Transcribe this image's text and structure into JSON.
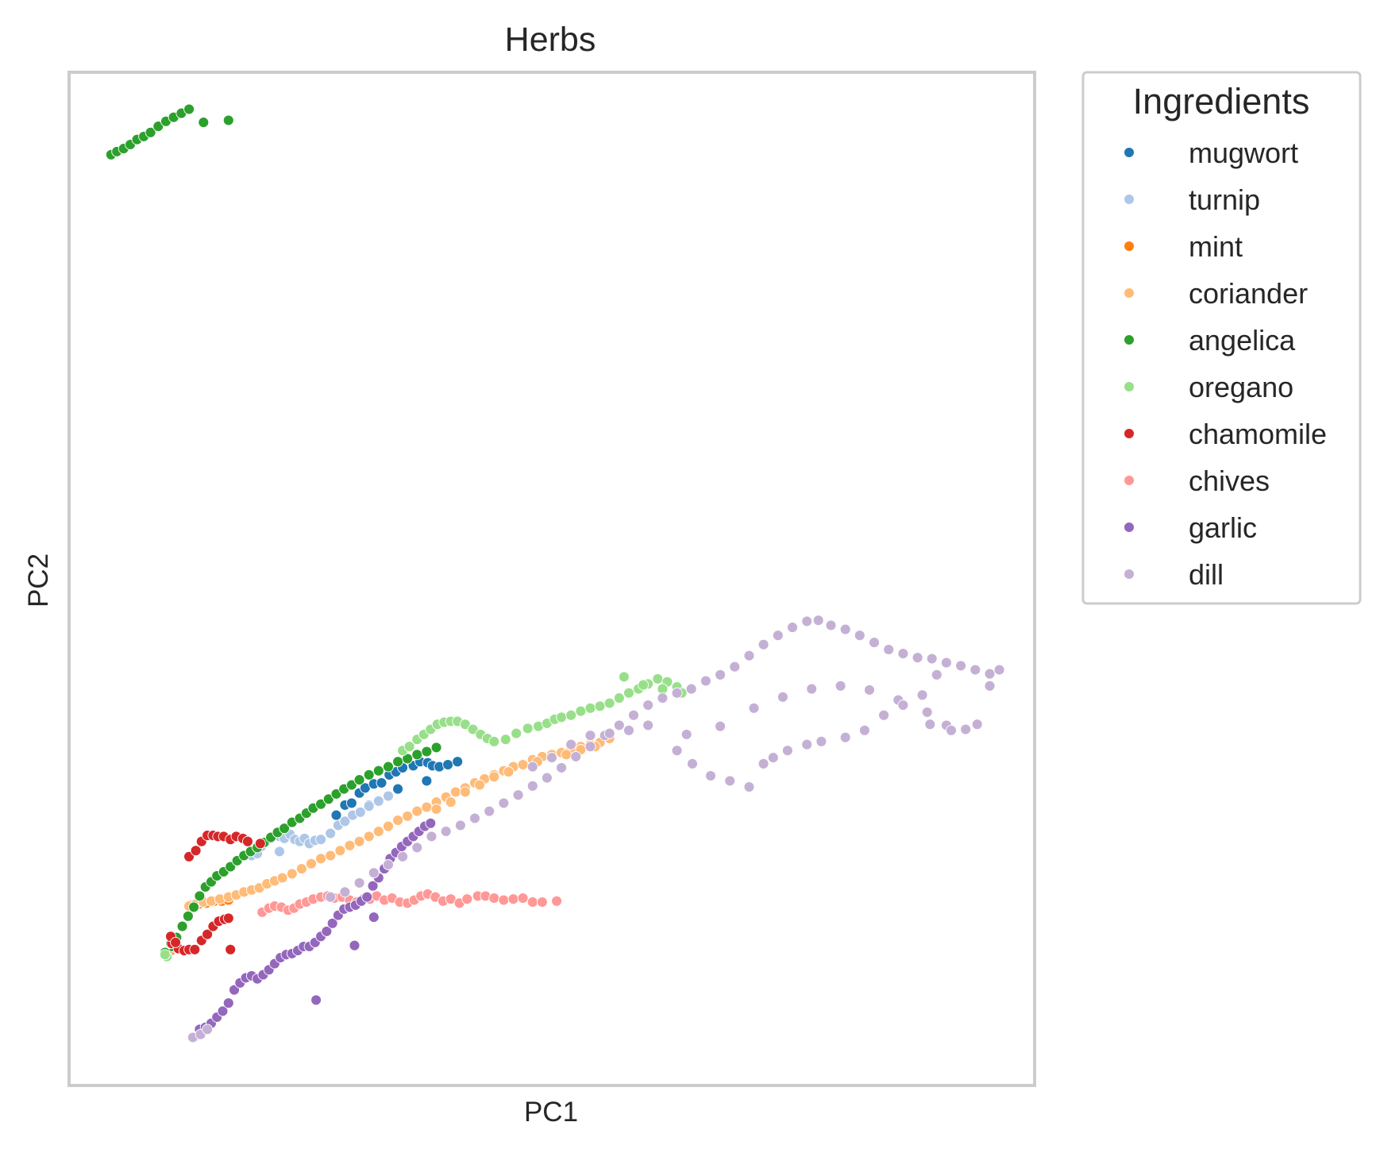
{
  "chart_data": {
    "type": "scatter",
    "title": "Herbs",
    "xlabel": "PC1",
    "ylabel": "PC2",
    "xlim": [
      0,
      100
    ],
    "ylim": [
      0,
      100
    ],
    "xticks": "hidden",
    "yticks": "hidden",
    "grid": false,
    "legend": {
      "title": "Ingredients",
      "placement": "outside-right-top"
    },
    "series": [
      {
        "name": "mugwort",
        "color": "#1f77b4",
        "x": [
          27.6,
          28.5,
          29.2,
          30.0,
          30.6,
          31.5,
          32.3,
          33.1,
          33.8,
          34.5,
          35.6,
          36.3,
          37.1,
          37.6,
          38.3,
          39.2,
          40.2,
          31.0,
          34.0,
          37.0
        ],
        "y": [
          26.6,
          27.6,
          27.8,
          28.8,
          29.3,
          29.7,
          29.8,
          30.6,
          30.9,
          31.3,
          31.5,
          31.9,
          31.8,
          31.5,
          31.4,
          31.6,
          31.9,
          27.6,
          29.2,
          30.0
        ]
      },
      {
        "name": "turnip",
        "color": "#aec7e8",
        "x": [
          18.8,
          19.3,
          19.8,
          20.3,
          20.8,
          21.2,
          21.7,
          22.2,
          22.8,
          23.3,
          23.8,
          24.3,
          24.8,
          25.4,
          26.0,
          27.0,
          27.8,
          28.5,
          29.3,
          30.1,
          31.0,
          32.0,
          33.0,
          19.4,
          21.7
        ],
        "y": [
          22.6,
          23.2,
          23.5,
          24.0,
          24.3,
          24.6,
          24.5,
          24.3,
          24.7,
          24.2,
          24.0,
          24.3,
          23.8,
          24.1,
          24.2,
          24.8,
          25.6,
          26.0,
          26.6,
          26.9,
          27.5,
          28.0,
          28.5,
          22.8,
          23.0
        ]
      },
      {
        "name": "mint",
        "color": "#ff7f0e",
        "x": [
          12.5,
          13.3,
          14.1,
          14.9,
          15.7,
          16.4,
          10.4,
          10.9
        ],
        "y": [
          17.7,
          17.8,
          17.9,
          18.1,
          18.1,
          18.2,
          13.2,
          13.5
        ]
      },
      {
        "name": "coriander",
        "color": "#ffbb78",
        "x": [
          12.3,
          13.0,
          13.8,
          14.6,
          15.5,
          16.4,
          17.2,
          18.0,
          18.8,
          19.6,
          20.4,
          21.2,
          22.0,
          23.0,
          24.0,
          25.0,
          26.0,
          27.0,
          28.0,
          29.0,
          30.0,
          31.0,
          32.0,
          33.0,
          34.0,
          35.0,
          36.0,
          37.0,
          38.0,
          39.0,
          40.0,
          41.0,
          42.0,
          43.0,
          44.0,
          45.0,
          46.0,
          47.0,
          48.0,
          49.0,
          50.0,
          51.0,
          52.0,
          53.0,
          54.0,
          55.0,
          56.0,
          38.0,
          39.5,
          41.0,
          42.5,
          44.0,
          45.5,
          47.0,
          48.5,
          50.0,
          51.5,
          53.0,
          54.5
        ],
        "y": [
          17.6,
          17.8,
          18.0,
          18.1,
          18.3,
          18.5,
          18.7,
          19.0,
          19.2,
          19.4,
          19.8,
          20.1,
          20.4,
          20.8,
          21.3,
          21.8,
          22.3,
          22.6,
          23.1,
          23.6,
          24.0,
          24.5,
          25.0,
          25.5,
          26.1,
          26.5,
          27.0,
          27.4,
          27.9,
          28.4,
          28.9,
          29.3,
          29.8,
          30.2,
          30.6,
          31.0,
          31.4,
          31.7,
          32.1,
          32.4,
          32.6,
          32.8,
          33.1,
          33.4,
          33.6,
          33.8,
          34.2,
          27.2,
          27.9,
          28.9,
          29.6,
          30.4,
          30.9,
          31.6,
          31.9,
          32.3,
          32.6,
          33.1,
          33.4
        ]
      },
      {
        "name": "angelica",
        "color": "#2ca02c",
        "x": [
          4.2,
          4.8,
          5.5,
          6.2,
          6.9,
          7.6,
          8.3,
          9.1,
          9.9,
          10.7,
          11.5,
          12.3,
          13.8,
          16.4,
          10.0,
          10.5,
          11.0,
          11.6,
          12.2,
          12.8,
          13.4,
          14.0,
          14.6,
          15.2,
          15.9,
          16.6,
          17.3,
          18.0,
          18.7,
          19.4,
          20.1,
          20.8,
          21.5,
          22.2,
          23.0,
          23.8,
          24.5,
          25.2,
          26.0,
          26.8,
          27.6,
          28.4,
          29.2,
          30.0,
          31.0,
          32.0,
          33.0,
          34.0,
          35.0,
          36.0,
          37.0,
          38.0,
          9.8,
          10.4
        ],
        "y": [
          92.0,
          92.3,
          92.6,
          93.0,
          93.5,
          93.8,
          94.2,
          94.8,
          95.3,
          95.7,
          96.1,
          96.5,
          95.2,
          95.4,
          12.9,
          13.6,
          14.5,
          15.6,
          16.6,
          17.5,
          18.6,
          19.5,
          20.0,
          20.6,
          21.0,
          21.5,
          22.1,
          22.6,
          23.0,
          23.4,
          23.9,
          24.4,
          24.9,
          25.3,
          25.9,
          26.3,
          26.8,
          27.3,
          27.7,
          28.2,
          28.7,
          29.2,
          29.6,
          30.1,
          30.6,
          31.0,
          31.4,
          31.9,
          32.2,
          32.6,
          32.9,
          33.3,
          13.0,
          13.9
        ]
      },
      {
        "name": "oregano",
        "color": "#98df8a",
        "x": [
          34.5,
          35.2,
          36.0,
          36.7,
          37.4,
          38.1,
          38.8,
          39.5,
          40.2,
          41.0,
          41.8,
          42.6,
          43.3,
          44.0,
          45.2,
          46.3,
          47.5,
          48.6,
          49.5,
          50.3,
          51.0,
          52.0,
          53.0,
          54.0,
          55.0,
          56.0,
          57.0,
          58.0,
          59.0,
          60.0,
          61.0,
          62.0,
          63.0,
          57.5,
          59.5,
          61.5,
          63.5,
          10.0,
          9.8
        ],
        "y": [
          33.0,
          33.4,
          34.1,
          34.6,
          35.1,
          35.6,
          35.8,
          35.9,
          35.9,
          35.6,
          35.1,
          34.6,
          34.2,
          33.9,
          34.1,
          34.7,
          35.2,
          35.4,
          35.7,
          36.1,
          36.3,
          36.5,
          36.9,
          37.2,
          37.4,
          37.7,
          38.2,
          38.7,
          39.1,
          39.6,
          40.1,
          39.8,
          39.3,
          40.3,
          39.5,
          39.1,
          38.7,
          12.6,
          12.8
        ]
      },
      {
        "name": "chamomile",
        "color": "#d62728",
        "x": [
          12.3,
          13.0,
          13.6,
          14.2,
          14.8,
          15.3,
          15.9,
          16.6,
          17.2,
          17.9,
          18.4,
          10.5,
          11.2,
          11.8,
          12.3,
          12.9,
          13.6,
          14.2,
          14.8,
          15.4,
          16.0,
          16.4,
          16.6,
          19.7,
          10.4,
          10.9
        ],
        "y": [
          22.5,
          23.1,
          24.0,
          24.6,
          24.6,
          24.5,
          24.5,
          24.2,
          24.5,
          24.3,
          24.0,
          13.9,
          13.4,
          13.2,
          13.3,
          13.3,
          14.2,
          14.8,
          15.6,
          16.1,
          16.3,
          16.4,
          13.3,
          23.8,
          14.6,
          14.0
        ]
      },
      {
        "name": "chives",
        "color": "#ff9896",
        "x": [
          19.9,
          20.6,
          21.2,
          21.9,
          22.6,
          23.2,
          23.8,
          24.5,
          25.2,
          26.0,
          26.7,
          27.4,
          28.2,
          29.0,
          29.7,
          30.4,
          31.1,
          31.8,
          32.6,
          33.4,
          34.2,
          35.0,
          35.7,
          36.4,
          37.1,
          37.9,
          38.7,
          39.5,
          40.4,
          41.2,
          42.3,
          43.1,
          44.0,
          45.0,
          46.0,
          47.0,
          48.0,
          49.0,
          50.5
        ],
        "y": [
          17.0,
          17.4,
          17.6,
          17.5,
          17.2,
          17.4,
          17.8,
          18.0,
          18.3,
          18.5,
          18.6,
          18.4,
          18.5,
          18.2,
          18.0,
          18.3,
          18.3,
          18.6,
          18.2,
          18.4,
          18.0,
          17.9,
          18.2,
          18.6,
          18.8,
          18.5,
          18.1,
          18.3,
          17.9,
          18.3,
          18.6,
          18.6,
          18.4,
          18.2,
          18.3,
          18.4,
          18.0,
          18.0,
          18.1
        ]
      },
      {
        "name": "garlic",
        "color": "#9467bd",
        "x": [
          12.8,
          13.4,
          14.0,
          14.6,
          15.2,
          15.8,
          16.4,
          17.0,
          17.6,
          18.2,
          18.8,
          19.4,
          20.0,
          20.6,
          21.2,
          21.8,
          22.4,
          23.0,
          23.6,
          24.2,
          24.8,
          25.4,
          26.0,
          26.6,
          27.2,
          27.8,
          28.4,
          29.0,
          29.6,
          30.2,
          30.8,
          31.4,
          32.0,
          32.6,
          33.2,
          33.8,
          34.4,
          35.0,
          35.6,
          36.2,
          36.8,
          37.4,
          25.5,
          29.5,
          31.5
        ],
        "y": [
          4.6,
          5.4,
          5.6,
          6.0,
          6.6,
          7.2,
          8.0,
          9.3,
          10.0,
          10.5,
          10.7,
          10.4,
          10.8,
          11.3,
          11.9,
          12.5,
          12.8,
          12.9,
          13.2,
          13.6,
          13.6,
          14.0,
          14.6,
          15.1,
          15.9,
          16.7,
          17.3,
          17.5,
          17.7,
          18.1,
          18.5,
          19.6,
          20.4,
          21.3,
          22.3,
          22.9,
          23.5,
          24.0,
          24.5,
          25.0,
          25.5,
          25.8,
          8.3,
          13.7,
          16.5
        ]
      },
      {
        "name": "dill",
        "color": "#c5b0d5",
        "x": [
          12.7,
          13.5,
          14.2,
          27.0,
          28.5,
          30.0,
          31.5,
          33.0,
          34.5,
          36.0,
          37.5,
          39.0,
          40.5,
          42.0,
          43.5,
          45.0,
          46.5,
          48.0,
          49.5,
          51.0,
          52.5,
          54.0,
          55.5,
          57.0,
          58.5,
          60.0,
          61.5,
          63.0,
          64.5,
          66.0,
          67.5,
          69.0,
          70.5,
          72.0,
          73.5,
          75.0,
          76.5,
          77.7,
          79.0,
          80.5,
          82.0,
          83.5,
          85.0,
          86.5,
          88.0,
          89.5,
          91.0,
          92.5,
          94.0,
          95.5,
          96.5,
          64.0,
          67.5,
          71.0,
          74.0,
          77.0,
          80.0,
          83.0,
          86.0,
          89.0,
          91.0,
          63.0,
          64.6,
          66.5,
          68.5,
          70.5,
          72.0,
          73.0,
          74.5,
          76.5,
          78.0,
          80.5,
          82.5,
          84.5,
          86.5,
          88.5,
          90.0,
          89.3,
          91.5,
          93.0,
          94.2,
          95.5,
          60.0,
          58.0,
          56.0,
          54.0,
          52.0,
          50.0,
          48.0
        ],
        "y": [
          4.6,
          4.9,
          5.4,
          18.5,
          19.0,
          19.9,
          20.9,
          21.7,
          22.5,
          23.4,
          24.5,
          25.0,
          25.6,
          26.3,
          27.0,
          27.8,
          28.6,
          29.5,
          30.3,
          31.3,
          32.4,
          33.4,
          34.5,
          35.5,
          36.5,
          37.5,
          38.2,
          38.7,
          39.1,
          39.9,
          40.5,
          41.3,
          42.4,
          43.5,
          44.4,
          45.2,
          45.8,
          45.9,
          45.4,
          45.0,
          44.4,
          43.7,
          43.0,
          42.6,
          42.2,
          42.1,
          41.7,
          41.4,
          41.0,
          40.6,
          41.0,
          34.6,
          35.4,
          37.2,
          38.3,
          39.1,
          39.4,
          39.0,
          38.0,
          36.8,
          35.5,
          33.0,
          31.7,
          30.5,
          30.0,
          29.4,
          31.7,
          32.3,
          33.0,
          33.6,
          33.9,
          34.3,
          35.0,
          36.5,
          37.5,
          38.5,
          40.5,
          35.6,
          35.0,
          35.1,
          35.6,
          39.4,
          35.5,
          35.0,
          34.7,
          34.5,
          33.6,
          32.3,
          31.4
        ]
      }
    ]
  }
}
